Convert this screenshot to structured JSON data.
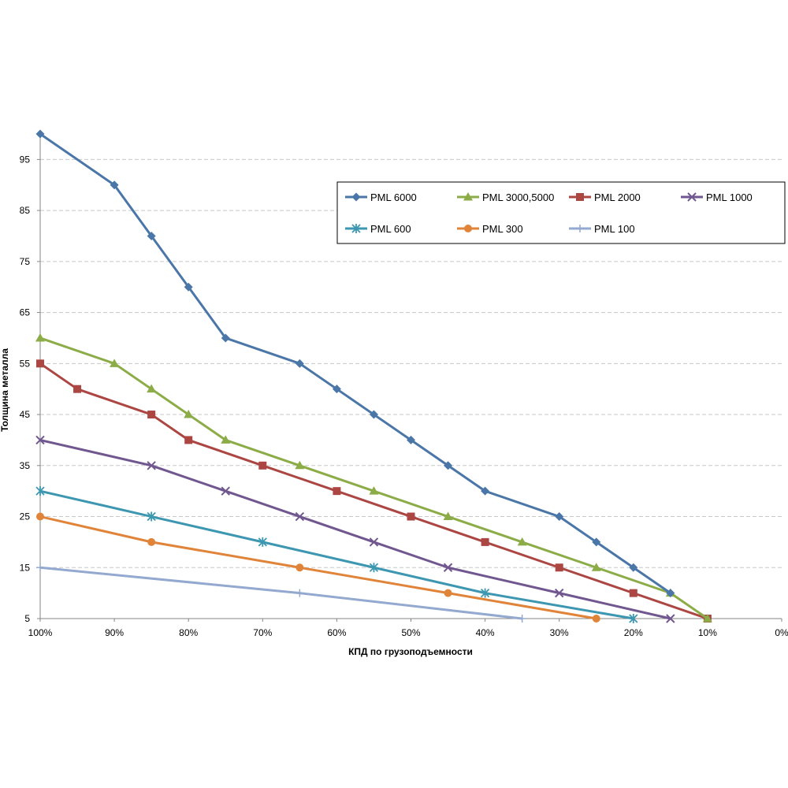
{
  "chart_data": {
    "type": "line",
    "xlabel": "КПД по грузоподъемности",
    "ylabel": "Толщина металла",
    "x": [
      100,
      95,
      90,
      85,
      80,
      75,
      70,
      65,
      60,
      55,
      50,
      45,
      40,
      35,
      30,
      25,
      20,
      15,
      10,
      5,
      0
    ],
    "x_tick_values": [
      100,
      90,
      80,
      70,
      60,
      50,
      40,
      30,
      20,
      10,
      0
    ],
    "x_tick_labels": [
      "100%",
      "90%",
      "80%",
      "70%",
      "60%",
      "50%",
      "40%",
      "30%",
      "20%",
      "10%",
      "0%"
    ],
    "xlim": [
      100,
      0
    ],
    "y_tick_values": [
      5,
      15,
      25,
      35,
      45,
      55,
      65,
      75,
      85,
      95
    ],
    "y_tick_labels": [
      "5",
      "15",
      "25",
      "35",
      "45",
      "55",
      "65",
      "75",
      "85",
      "95"
    ],
    "ylim": [
      5,
      100
    ],
    "grid": "horizontal-dashed",
    "legend_position": "top-right",
    "series": [
      {
        "name": "PML 6000",
        "color": "#4a76a8",
        "marker": "diamond",
        "points": [
          [
            100,
            100
          ],
          [
            90,
            90
          ],
          [
            85,
            80
          ],
          [
            80,
            70
          ],
          [
            75,
            60
          ],
          [
            65,
            55
          ],
          [
            60,
            50
          ],
          [
            55,
            45
          ],
          [
            50,
            40
          ],
          [
            45,
            35
          ],
          [
            40,
            30
          ],
          [
            30,
            25
          ],
          [
            25,
            20
          ],
          [
            20,
            15
          ],
          [
            15,
            10
          ]
        ]
      },
      {
        "name": "PML 3000,5000",
        "color": "#8bac46",
        "marker": "triangle",
        "points": [
          [
            100,
            60
          ],
          [
            90,
            55
          ],
          [
            85,
            50
          ],
          [
            80,
            45
          ],
          [
            75,
            40
          ],
          [
            65,
            35
          ],
          [
            55,
            30
          ],
          [
            45,
            25
          ],
          [
            35,
            20
          ],
          [
            25,
            15
          ],
          [
            15,
            10
          ],
          [
            10,
            5
          ]
        ]
      },
      {
        "name": "PML 2000",
        "color": "#ab4643",
        "marker": "square",
        "points": [
          [
            100,
            55
          ],
          [
            95,
            50
          ],
          [
            85,
            45
          ],
          [
            80,
            40
          ],
          [
            70,
            35
          ],
          [
            60,
            30
          ],
          [
            50,
            25
          ],
          [
            40,
            20
          ],
          [
            30,
            15
          ],
          [
            20,
            10
          ],
          [
            10,
            5
          ]
        ]
      },
      {
        "name": "PML 1000",
        "color": "#71578f",
        "marker": "x",
        "points": [
          [
            100,
            40
          ],
          [
            85,
            35
          ],
          [
            75,
            30
          ],
          [
            65,
            25
          ],
          [
            55,
            20
          ],
          [
            45,
            15
          ],
          [
            30,
            10
          ],
          [
            15,
            5
          ]
        ]
      },
      {
        "name": "PML 600",
        "color": "#3d97b1",
        "marker": "star",
        "points": [
          [
            100,
            30
          ],
          [
            85,
            25
          ],
          [
            70,
            20
          ],
          [
            55,
            15
          ],
          [
            40,
            10
          ],
          [
            20,
            5
          ]
        ]
      },
      {
        "name": "PML 300",
        "color": "#e0843a",
        "marker": "circle",
        "points": [
          [
            100,
            25
          ],
          [
            85,
            20
          ],
          [
            65,
            15
          ],
          [
            45,
            10
          ],
          [
            25,
            5
          ]
        ]
      },
      {
        "name": "PML 100",
        "color": "#93a9cf",
        "marker": "plus",
        "points": [
          [
            100,
            15
          ],
          [
            65,
            10
          ],
          [
            35,
            5
          ]
        ]
      }
    ]
  }
}
